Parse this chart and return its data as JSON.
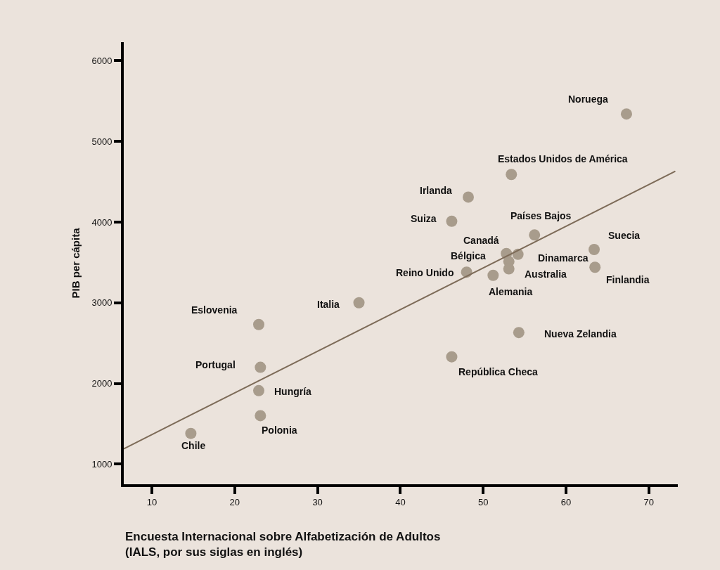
{
  "chart_data": {
    "type": "scatter",
    "xlabel": "Encuesta Internacional sobre Alfabetización de Adultos\n(IALS, por sus siglas en inglés)",
    "ylabel": "PIB per cápita",
    "xlim": [
      6.6,
      73.5
    ],
    "ylim": [
      750,
      6230
    ],
    "xticks": [
      10,
      20,
      30,
      40,
      50,
      60,
      70
    ],
    "yticks": [
      1000,
      2000,
      3000,
      4000,
      5000,
      6000
    ],
    "grid": false,
    "marker": "circle",
    "series": [
      {
        "color": "#a89c8c",
        "x": [
          67.3,
          53.4,
          48.2,
          46.2,
          56.2,
          52.8,
          53.1,
          54.2,
          53.1,
          63.4,
          63.5,
          48.0,
          51.2,
          54.3,
          46.2,
          35.0,
          22.9,
          23.1,
          22.9,
          23.1,
          14.7
        ],
        "values": [
          5340,
          4590,
          4310,
          4010,
          3840,
          3610,
          3510,
          3600,
          3420,
          3660,
          3440,
          3380,
          3340,
          2630,
          2330,
          3000,
          2730,
          2200,
          1910,
          1600,
          1380
        ]
      },
      {
        "type": "line",
        "color": "#7d6b58",
        "x": [
          6.6,
          73.2
        ],
        "values": [
          1190,
          4630
        ],
        "marker": "none",
        "line_style": "solid"
      }
    ],
    "annotations": [
      {
        "text": "Noruega",
        "x": 67.3,
        "y": 5340
      },
      {
        "text": "Estados Unidos de América",
        "x": 53.4,
        "y": 4590
      },
      {
        "text": "Irlanda",
        "x": 48.2,
        "y": 4310
      },
      {
        "text": "Suiza",
        "x": 46.2,
        "y": 4010
      },
      {
        "text": "Países Bajos",
        "x": 56.2,
        "y": 3840
      },
      {
        "text": "Canadá",
        "x": 52.8,
        "y": 3610
      },
      {
        "text": "Bélgica",
        "x": 53.1,
        "y": 3510
      },
      {
        "text": "Dinamarca",
        "x": 54.2,
        "y": 3600
      },
      {
        "text": "Australia",
        "x": 53.1,
        "y": 3420
      },
      {
        "text": "Suecia",
        "x": 63.4,
        "y": 3660
      },
      {
        "text": "Finlandia",
        "x": 63.5,
        "y": 3440
      },
      {
        "text": "Reino Unido",
        "x": 48.0,
        "y": 3380
      },
      {
        "text": "Alemania",
        "x": 51.2,
        "y": 3340
      },
      {
        "text": "Nueva Zelandia",
        "x": 54.3,
        "y": 2630
      },
      {
        "text": "República Checa",
        "x": 46.2,
        "y": 2330
      },
      {
        "text": "Italia",
        "x": 35.0,
        "y": 3000
      },
      {
        "text": "Eslovenia",
        "x": 22.9,
        "y": 2730
      },
      {
        "text": "Portugal",
        "x": 23.1,
        "y": 2200
      },
      {
        "text": "Hungría",
        "x": 22.9,
        "y": 1910
      },
      {
        "text": "Polonia",
        "x": 23.1,
        "y": 1600
      },
      {
        "text": "Chile",
        "x": 14.7,
        "y": 1380
      }
    ]
  }
}
